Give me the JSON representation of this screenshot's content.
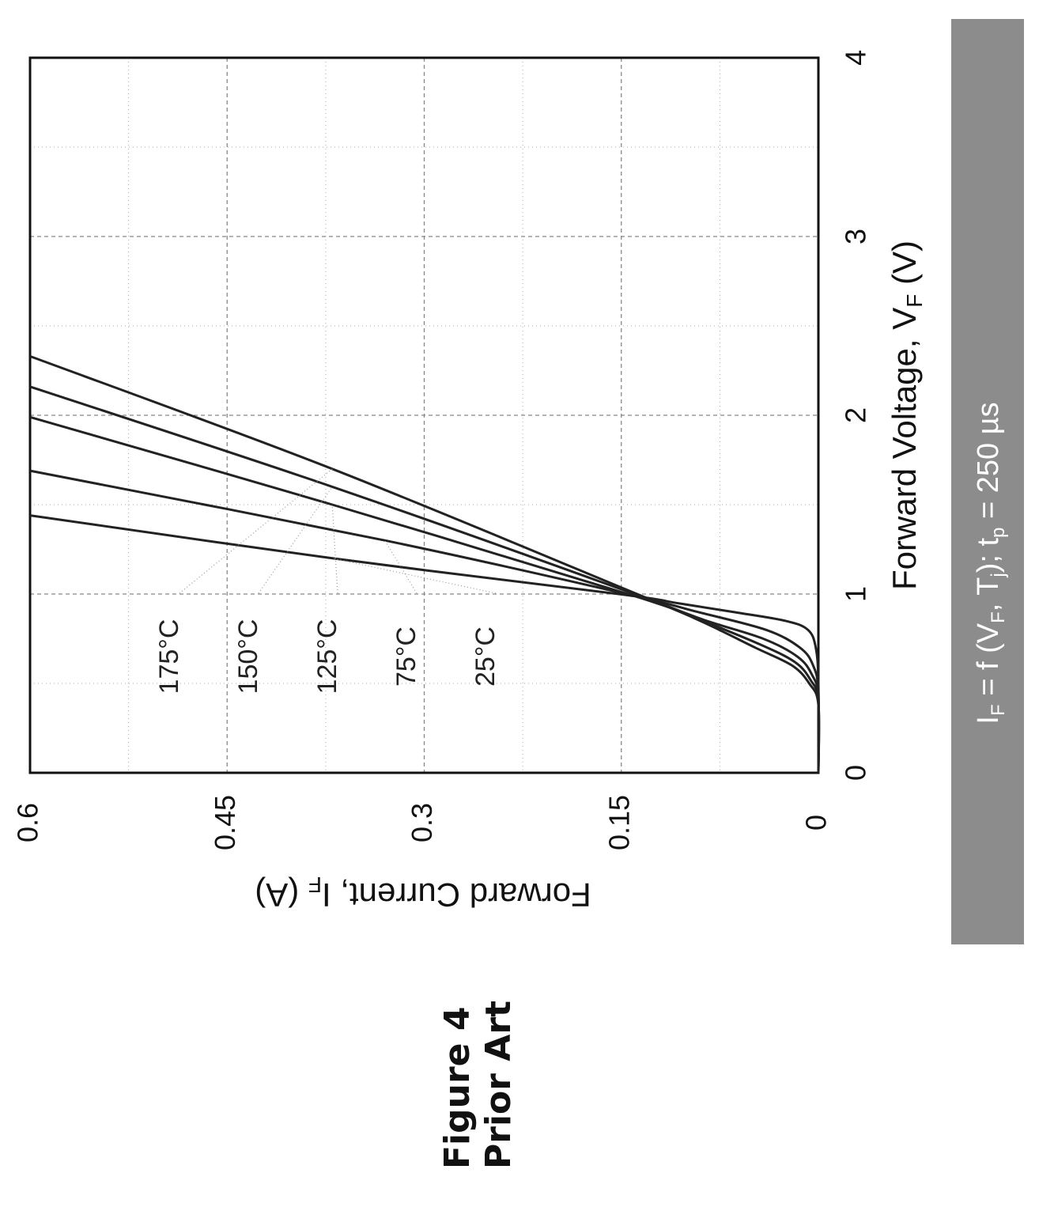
{
  "figure": {
    "number_label": "Figure 4",
    "caption_label": "Prior Art"
  },
  "chart_data": {
    "type": "line",
    "orientation": "rotated-90-ccw",
    "xlabel": "Forward Voltage, V",
    "xlabel_sub": "F",
    "xlabel_unit": " (V)",
    "ylabel": "Forward Current, I",
    "ylabel_sub": "F",
    "ylabel_unit": " (A)",
    "xlim": [
      0,
      4
    ],
    "ylim": [
      0,
      0.6
    ],
    "x_ticks": [
      0,
      1,
      2,
      3,
      4
    ],
    "x_tick_labels": [
      "0",
      "1",
      "2",
      "3",
      "4"
    ],
    "y_ticks": [
      0,
      0.15,
      0.3,
      0.45,
      0.6
    ],
    "y_tick_labels": [
      "0",
      "0.15",
      "0.3",
      "0.45",
      "0.6"
    ],
    "grid": true,
    "banner": {
      "text": "I",
      "sub1": "F",
      "mid": " = f (V",
      "sub2": "F",
      "mid2": ", T",
      "sub3": "j",
      "mid3": "); t",
      "sub4": "p",
      "tail": " = 250 µs",
      "background": "#8c8c8c"
    },
    "series": [
      {
        "name": "25°C",
        "x": [
          0,
          0.5,
          0.7,
          0.8,
          0.85,
          0.9,
          0.95,
          1.0,
          1.2,
          1.44
        ],
        "y": [
          0,
          0,
          0.002,
          0.008,
          0.025,
          0.065,
          0.108,
          0.152,
          0.37,
          0.6
        ]
      },
      {
        "name": "75°C",
        "x": [
          0,
          0.45,
          0.6,
          0.7,
          0.8,
          0.9,
          1.0,
          1.3,
          1.69
        ],
        "y": [
          0,
          0,
          0.004,
          0.014,
          0.04,
          0.092,
          0.146,
          0.33,
          0.6
        ]
      },
      {
        "name": "125°C",
        "x": [
          0,
          0.42,
          0.55,
          0.65,
          0.75,
          0.85,
          1.0,
          1.5,
          1.99
        ],
        "y": [
          0,
          0,
          0.005,
          0.016,
          0.042,
          0.085,
          0.145,
          0.37,
          0.6
        ]
      },
      {
        "name": "150°C",
        "x": [
          0,
          0.4,
          0.52,
          0.62,
          0.72,
          0.85,
          1.0,
          1.6,
          2.16
        ],
        "y": [
          0,
          0,
          0.006,
          0.018,
          0.045,
          0.088,
          0.14,
          0.37,
          0.6
        ]
      },
      {
        "name": "175°C",
        "x": [
          0,
          0.38,
          0.5,
          0.6,
          0.7,
          0.85,
          1.0,
          1.7,
          2.33
        ],
        "y": [
          0,
          0,
          0.007,
          0.02,
          0.048,
          0.09,
          0.138,
          0.37,
          0.6
        ]
      }
    ],
    "annotations": [
      {
        "text": "175°C",
        "series": "175°C"
      },
      {
        "text": "150°C",
        "series": "150°C"
      },
      {
        "text": "125°C",
        "series": "125°C"
      },
      {
        "text": "75°C",
        "series": "75°C"
      },
      {
        "text": "25°C",
        "series": "25°C"
      }
    ],
    "line_color": "#222222",
    "grid_color": "#888888"
  }
}
